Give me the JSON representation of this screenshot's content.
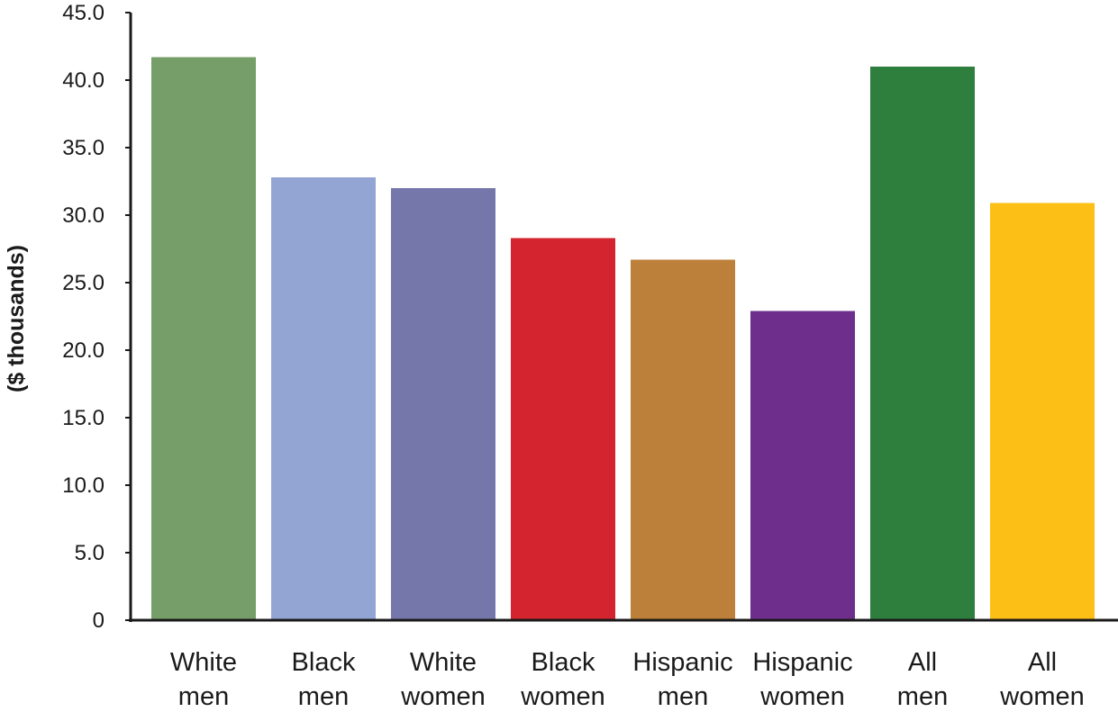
{
  "chart_data": {
    "type": "bar",
    "title": "",
    "xlabel": "",
    "ylabel": "($ thousands)",
    "ylim": [
      0,
      45
    ],
    "yticks": [
      "0",
      "5.0",
      "10.0",
      "15.0",
      "20.0",
      "25.0",
      "30.0",
      "35.0",
      "40.0",
      "45.0"
    ],
    "ytick_values": [
      0,
      5,
      10,
      15,
      20,
      25,
      30,
      35,
      40,
      45
    ],
    "grid": false,
    "legend": "none",
    "categories": [
      {
        "line1": "White",
        "line2": "men"
      },
      {
        "line1": "Black",
        "line2": "men"
      },
      {
        "line1": "White",
        "line2": "women"
      },
      {
        "line1": "Black",
        "line2": "women"
      },
      {
        "line1": "Hispanic",
        "line2": "men"
      },
      {
        "line1": "Hispanic",
        "line2": "women"
      },
      {
        "line1": "All",
        "line2": "men"
      },
      {
        "line1": "All",
        "line2": "women"
      }
    ],
    "values": [
      41.7,
      32.8,
      32.0,
      28.3,
      26.7,
      22.9,
      41.0,
      30.9
    ],
    "colors": [
      "#759e68",
      "#93a5d3",
      "#7577ab",
      "#d3242f",
      "#bc803a",
      "#6d2e8c",
      "#2e7e3e",
      "#fbbf15"
    ]
  }
}
